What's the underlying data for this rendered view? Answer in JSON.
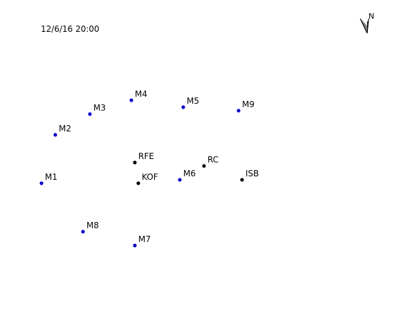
{
  "map": {
    "timestamp": "12/6/16 20:00",
    "north_arrow": {
      "label": "N",
      "icon": "north-arrow-icon"
    },
    "colors": {
      "blue_station": "#0000cc",
      "black_station": "#000000"
    },
    "stations": [
      {
        "id": "M4",
        "label": "M4",
        "group": "blue"
      },
      {
        "id": "M3",
        "label": "M3",
        "group": "blue"
      },
      {
        "id": "M5",
        "label": "M5",
        "group": "blue"
      },
      {
        "id": "M9",
        "label": "M9",
        "group": "blue"
      },
      {
        "id": "M2",
        "label": "M2",
        "group": "blue"
      },
      {
        "id": "RFE",
        "label": "RFE",
        "group": "black"
      },
      {
        "id": "RC",
        "label": "RC",
        "group": "black"
      },
      {
        "id": "M1",
        "label": "M1",
        "group": "blue"
      },
      {
        "id": "KOF",
        "label": "KOF",
        "group": "black"
      },
      {
        "id": "M6",
        "label": "M6",
        "group": "blue"
      },
      {
        "id": "ISB",
        "label": "ISB",
        "group": "black"
      },
      {
        "id": "M8",
        "label": "M8",
        "group": "blue"
      },
      {
        "id": "M7",
        "label": "M7",
        "group": "blue"
      }
    ]
  }
}
